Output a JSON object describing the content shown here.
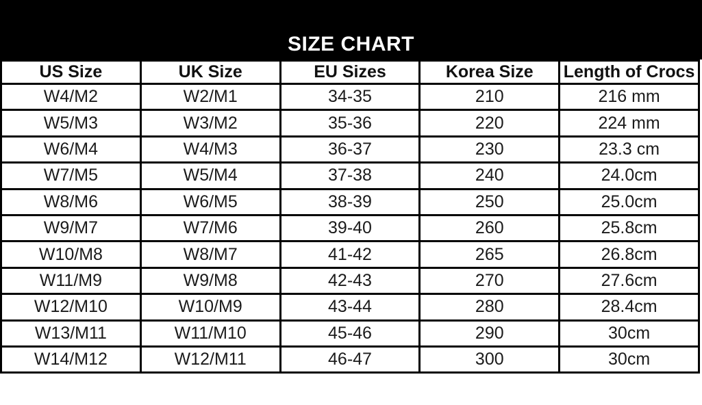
{
  "title": "SIZE CHART",
  "colors": {
    "band_bg": "#000000",
    "band_text": "#ffffff",
    "border": "#000000",
    "cell_bg": "#ffffff",
    "cell_text": "#1b1b1b"
  },
  "chart_data": {
    "type": "table",
    "title": "SIZE CHART",
    "columns": [
      "US Size",
      "UK Size",
      "EU Sizes",
      "Korea Size",
      "Length of Crocs"
    ],
    "rows": [
      [
        "W4/M2",
        "W2/M1",
        "34-35",
        "210",
        "216 mm"
      ],
      [
        "W5/M3",
        "W3/M2",
        "35-36",
        "220",
        "224 mm"
      ],
      [
        "W6/M4",
        "W4/M3",
        "36-37",
        "230",
        "23.3 cm"
      ],
      [
        "W7/M5",
        "W5/M4",
        "37-38",
        "240",
        "24.0cm"
      ],
      [
        "W8/M6",
        "W6/M5",
        "38-39",
        "250",
        "25.0cm"
      ],
      [
        "W9/M7",
        "W7/M6",
        "39-40",
        "260",
        "25.8cm"
      ],
      [
        "W10/M8",
        "W8/M7",
        "41-42",
        "265",
        "26.8cm"
      ],
      [
        "W11/M9",
        "W9/M8",
        "42-43",
        "270",
        "27.6cm"
      ],
      [
        "W12/M10",
        "W10/M9",
        "43-44",
        "280",
        "28.4cm"
      ],
      [
        "W13/M11",
        "W11/M10",
        "45-46",
        "290",
        "30cm"
      ],
      [
        "W14/M12",
        "W12/M11",
        "46-47",
        "300",
        "30cm"
      ]
    ]
  }
}
